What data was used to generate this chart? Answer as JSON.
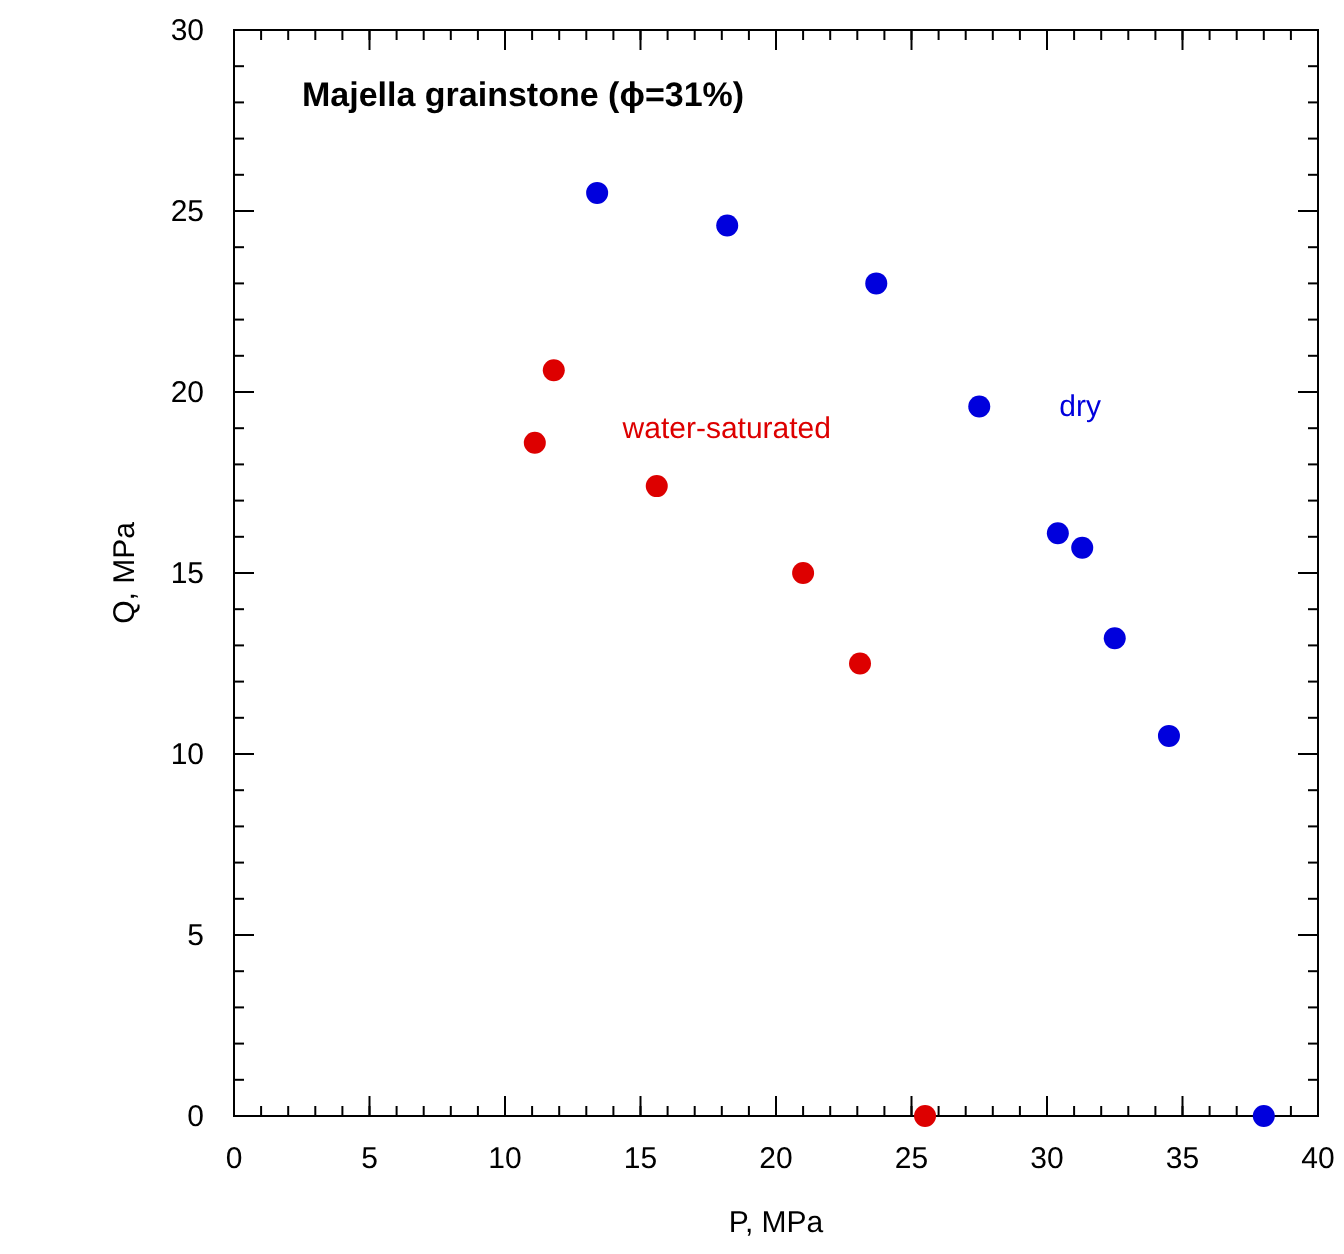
{
  "chart_data": {
    "type": "scatter",
    "title": "Majella grainstone (ϕ=31%)",
    "xlabel": "P, MPa",
    "ylabel": "Q, MPa",
    "xlim": [
      0,
      40
    ],
    "ylim": [
      0,
      30
    ],
    "xticks": [
      0,
      5,
      10,
      15,
      20,
      25,
      30,
      35,
      40
    ],
    "yticks": [
      0,
      5,
      10,
      15,
      20,
      25,
      30
    ],
    "marker": "circle",
    "grid": false,
    "legend": false,
    "series": [
      {
        "name": "dry",
        "color": "#0000dd",
        "x": [
          13.4,
          18.2,
          23.7,
          27.5,
          30.4,
          31.3,
          32.5,
          34.5,
          38.0
        ],
        "values": [
          25.5,
          24.6,
          23.0,
          19.6,
          16.1,
          15.7,
          13.2,
          10.5,
          0
        ]
      },
      {
        "name": "water-saturated",
        "color": "#dd0000",
        "x": [
          11.8,
          11.1,
          15.6,
          21.0,
          23.1,
          25.5
        ],
        "values": [
          20.6,
          18.6,
          17.4,
          15.0,
          12.5,
          0
        ]
      }
    ]
  }
}
